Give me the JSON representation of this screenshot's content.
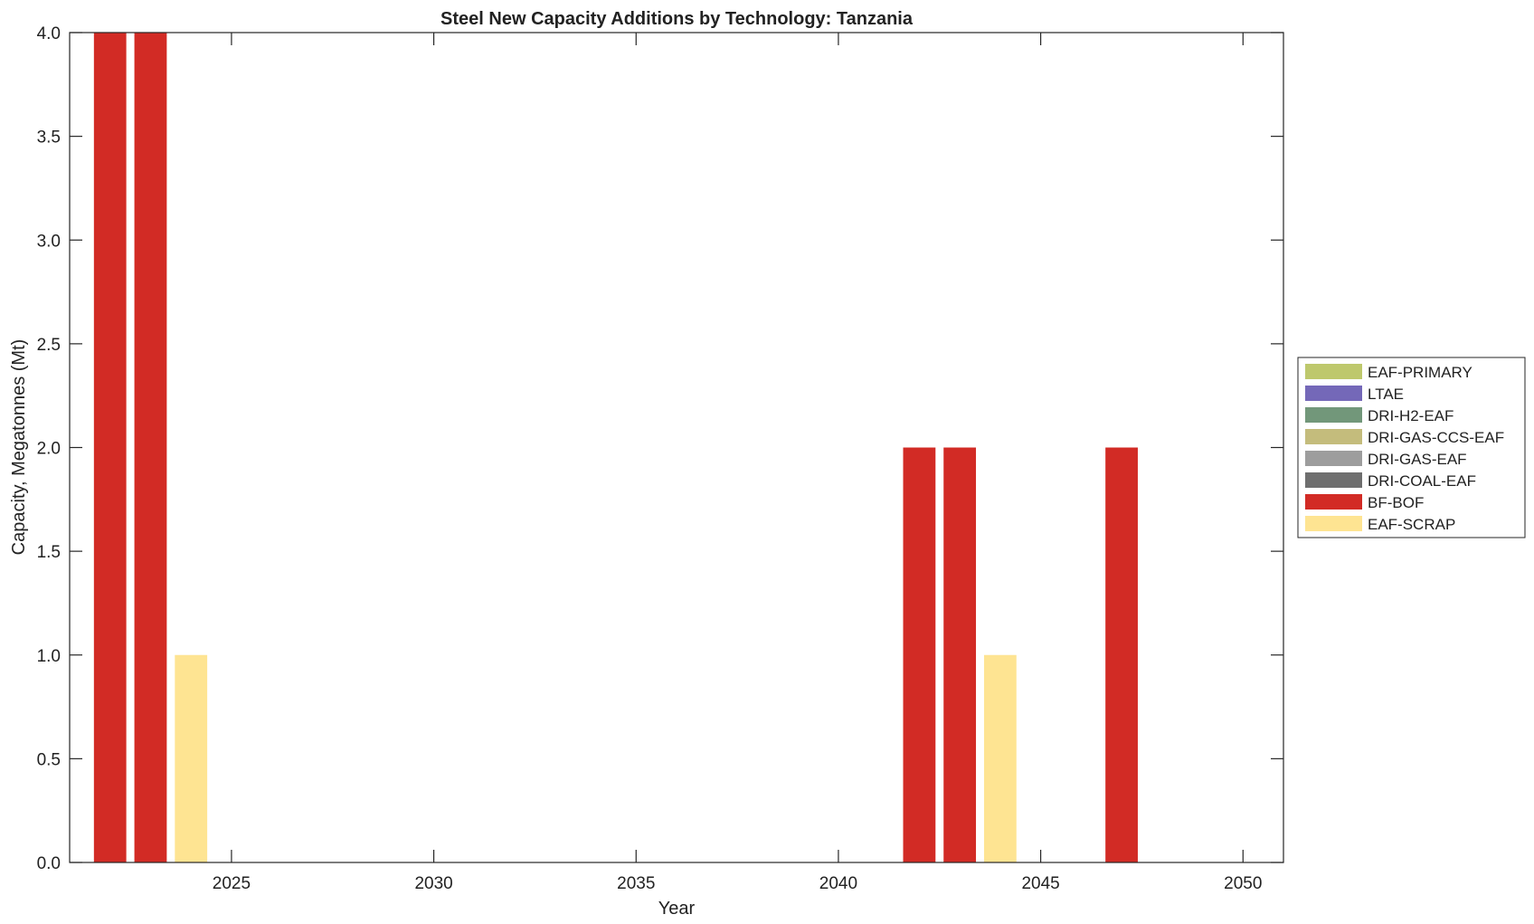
{
  "chart_data": {
    "type": "bar",
    "stacked": true,
    "title": "Steel New Capacity Additions by Technology: Tanzania",
    "xlabel": "Year",
    "ylabel": "Capacity, Megatonnes (Mt)",
    "xlim": [
      2021,
      2051
    ],
    "ylim": [
      0,
      4
    ],
    "xticks": [
      2025,
      2030,
      2035,
      2040,
      2045,
      2050
    ],
    "yticks": [
      "0.0",
      "0.5",
      "1.0",
      "1.5",
      "2.0",
      "2.5",
      "3.0",
      "3.5",
      "4.0"
    ],
    "grid": false,
    "legend_position": "right",
    "years": [
      2022,
      2023,
      2024,
      2042,
      2043,
      2044,
      2047
    ],
    "series": [
      {
        "name": "EAF-PRIMARY",
        "color": "#bec86c",
        "values": [
          0,
          0,
          0,
          0,
          0,
          0,
          0
        ]
      },
      {
        "name": "LTAE",
        "color": "#7468b8",
        "values": [
          0,
          0,
          0,
          0,
          0,
          0,
          0
        ]
      },
      {
        "name": "DRI-H2-EAF",
        "color": "#72977a",
        "values": [
          0,
          0,
          0,
          0,
          0,
          0,
          0
        ]
      },
      {
        "name": "DRI-GAS-CCS-EAF",
        "color": "#c4bc7c",
        "values": [
          0,
          0,
          0,
          0,
          0,
          0,
          0
        ]
      },
      {
        "name": "DRI-GAS-EAF",
        "color": "#9d9d9d",
        "values": [
          0,
          0,
          0,
          0,
          0,
          0,
          0
        ]
      },
      {
        "name": "DRI-COAL-EAF",
        "color": "#6e6e6e",
        "values": [
          0,
          0,
          0,
          0,
          0,
          0,
          0
        ]
      },
      {
        "name": "BF-BOF",
        "color": "#d22b25",
        "values": [
          4,
          4,
          0,
          2,
          2,
          0,
          2
        ]
      },
      {
        "name": "EAF-SCRAP",
        "color": "#fee492",
        "values": [
          0,
          0,
          1,
          0,
          0,
          1,
          0
        ]
      }
    ]
  }
}
